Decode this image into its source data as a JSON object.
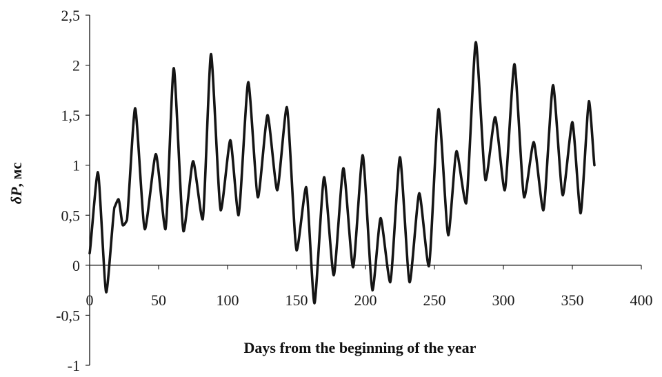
{
  "chart_data": {
    "type": "line",
    "xlabel": "Days from the beginning of the year",
    "ylabel_symbol": "δP",
    "ylabel_unit": ", мс",
    "xlim": [
      0,
      400
    ],
    "ylim": [
      -1,
      2.5
    ],
    "x_ticks": [
      0,
      50,
      100,
      150,
      200,
      250,
      300,
      350,
      400
    ],
    "x_tick_labels": [
      "0",
      "50",
      "100",
      "150",
      "200",
      "250",
      "300",
      "350",
      "400"
    ],
    "y_ticks": [
      2.5,
      2,
      1.5,
      1,
      0.5,
      0,
      -0.5,
      -1
    ],
    "y_tick_labels": [
      "2,5",
      "2",
      "1,5",
      "1",
      "0,5",
      "0",
      "-0,5",
      "-1"
    ],
    "grid": false,
    "legend": "none",
    "line_color": "#151515",
    "series": [
      {
        "x": [
          0,
          6,
          12,
          18,
          21,
          24,
          27,
          33,
          40,
          48,
          55,
          61,
          68,
          75,
          82,
          88,
          95,
          102,
          108,
          115,
          122,
          129,
          136,
          143,
          150,
          157,
          163,
          170,
          177,
          184,
          191,
          198,
          205,
          211,
          218,
          225,
          232,
          239,
          246,
          253,
          260,
          266,
          273,
          280,
          287,
          294,
          301,
          308,
          315,
          322,
          329,
          336,
          343,
          350,
          356,
          362,
          366
        ],
        "y": [
          0.12,
          0.93,
          -0.27,
          0.58,
          0.66,
          0.4,
          0.45,
          1.57,
          0.36,
          1.11,
          0.36,
          1.97,
          0.34,
          1.04,
          0.46,
          2.11,
          0.55,
          1.25,
          0.5,
          1.83,
          0.68,
          1.5,
          0.75,
          1.58,
          0.15,
          0.78,
          -0.38,
          0.88,
          -0.1,
          0.97,
          -0.02,
          1.1,
          -0.25,
          0.47,
          -0.17,
          1.08,
          -0.17,
          0.72,
          -0.01,
          1.56,
          0.3,
          1.14,
          0.62,
          2.23,
          0.85,
          1.48,
          0.75,
          2.01,
          0.68,
          1.23,
          0.55,
          1.8,
          0.7,
          1.43,
          0.52,
          1.64,
          1.0
        ]
      }
    ]
  }
}
